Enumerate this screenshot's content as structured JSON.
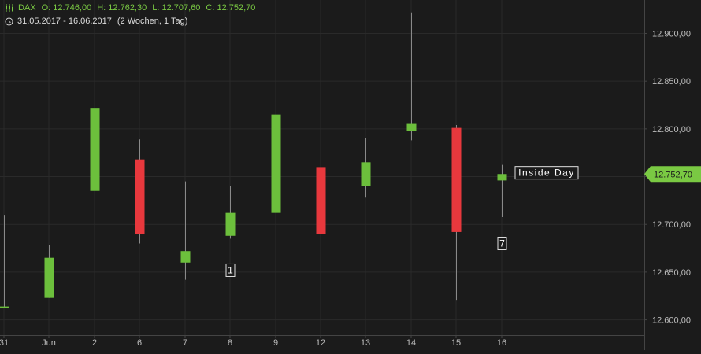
{
  "header": {
    "symbol": "DAX",
    "open": "O: 12.746,00",
    "high": "H: 12.762,30",
    "low": "L: 12.707,60",
    "close": "C: 12.752,70",
    "range": "31.05.2017 - 16.06.2017",
    "period": "(2 Wochen, 1 Tag)",
    "icons": [
      "candlestick-icon",
      "clock-icon"
    ]
  },
  "chart_data": {
    "type": "candlestick",
    "categories": [
      "31",
      "Jun",
      "2",
      "6",
      "7",
      "8",
      "9",
      "12",
      "13",
      "14",
      "15",
      "16"
    ],
    "ohlc": [
      {
        "x": "31",
        "open": 12612,
        "high": 12710,
        "low": 12612,
        "close": 12614
      },
      {
        "x": "Jun",
        "open": 12623,
        "high": 12678,
        "low": 12623,
        "close": 12665
      },
      {
        "x": "2",
        "open": 12735,
        "high": 12878,
        "low": 12735,
        "close": 12822
      },
      {
        "x": "6",
        "open": 12768,
        "high": 12789,
        "low": 12680,
        "close": 12690
      },
      {
        "x": "7",
        "open": 12660,
        "high": 12745,
        "low": 12642,
        "close": 12672
      },
      {
        "x": "8",
        "open": 12688,
        "high": 12740,
        "low": 12685,
        "close": 12712
      },
      {
        "x": "9",
        "open": 12712,
        "high": 12820,
        "low": 12712,
        "close": 12815
      },
      {
        "x": "12",
        "open": 12760,
        "high": 12782,
        "low": 12666,
        "close": 12690
      },
      {
        "x": "13",
        "open": 12740,
        "high": 12790,
        "low": 12728,
        "close": 12765
      },
      {
        "x": "14",
        "open": 12798,
        "high": 12922,
        "low": 12788,
        "close": 12806
      },
      {
        "x": "15",
        "open": 12801,
        "high": 12804,
        "low": 12621,
        "close": 12692
      },
      {
        "x": "16",
        "open": 12746,
        "high": 12762.3,
        "low": 12707.6,
        "close": 12752.7
      }
    ],
    "y_ticks": [
      "12.600,00",
      "12.650,00",
      "12.700,00",
      "12.750,00",
      "12.800,00",
      "12.850,00",
      "12.900,00"
    ],
    "y_tick_values": [
      12600,
      12650,
      12700,
      12750,
      12800,
      12850,
      12900
    ],
    "ylim": [
      12584,
      12935
    ],
    "last_price_label": "12.752,70",
    "last_price": 12752.7,
    "annotations": [
      {
        "x": "8",
        "text": "1",
        "y": 12652
      },
      {
        "x": "16",
        "text": "7",
        "y": 12680
      },
      {
        "x": "16",
        "text": "Inside Day",
        "y": 12754
      }
    ],
    "colors": {
      "up": "#6cbf3c",
      "down": "#e8383d",
      "background": "#1b1b1b",
      "grid": "#2a2a2a",
      "axis": "#444444",
      "text": "#bdbdbd",
      "price_tag": "#7ac943"
    },
    "grid": true
  }
}
